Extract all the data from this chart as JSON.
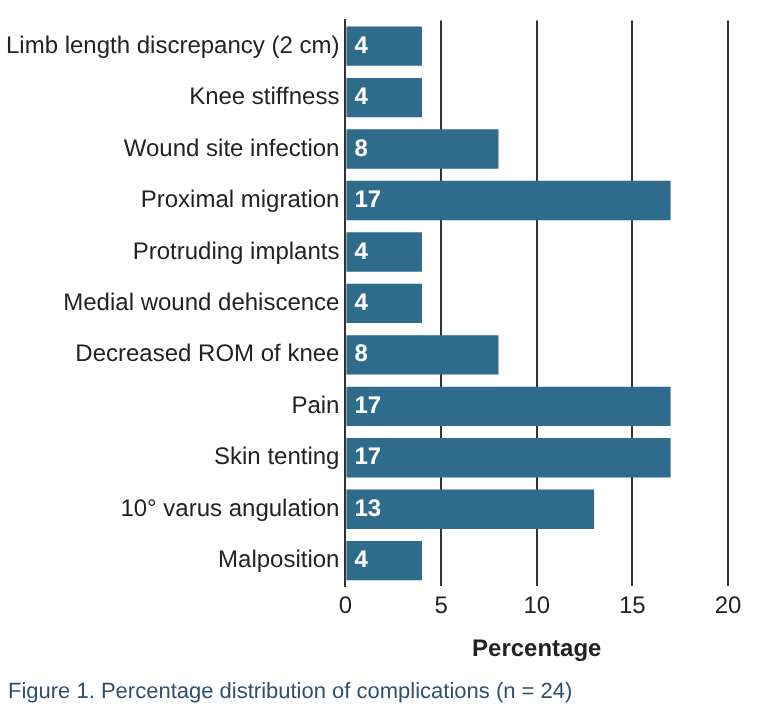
{
  "chart_data": {
    "type": "bar",
    "orientation": "horizontal",
    "categories": [
      "Limb length discrepancy (2 cm)",
      "Knee stiffness",
      "Wound site infection",
      "Proximal migration",
      "Protruding implants",
      "Medial wound dehiscence",
      "Decreased ROM of knee",
      "Pain",
      "Skin tenting",
      "10° varus angulation",
      "Malposition"
    ],
    "values": [
      4,
      4,
      8,
      17,
      4,
      4,
      8,
      17,
      17,
      13,
      4
    ],
    "color": "#2f6b8a",
    "xlim": [
      0,
      20
    ],
    "xticks": [
      0,
      5,
      10,
      15,
      20
    ],
    "xlabel": "Percentage",
    "grid": "x",
    "legend": false,
    "data_labels": true,
    "annotations": [
      "Figure 1. Percentage distribution of complications (n = 24)"
    ]
  }
}
